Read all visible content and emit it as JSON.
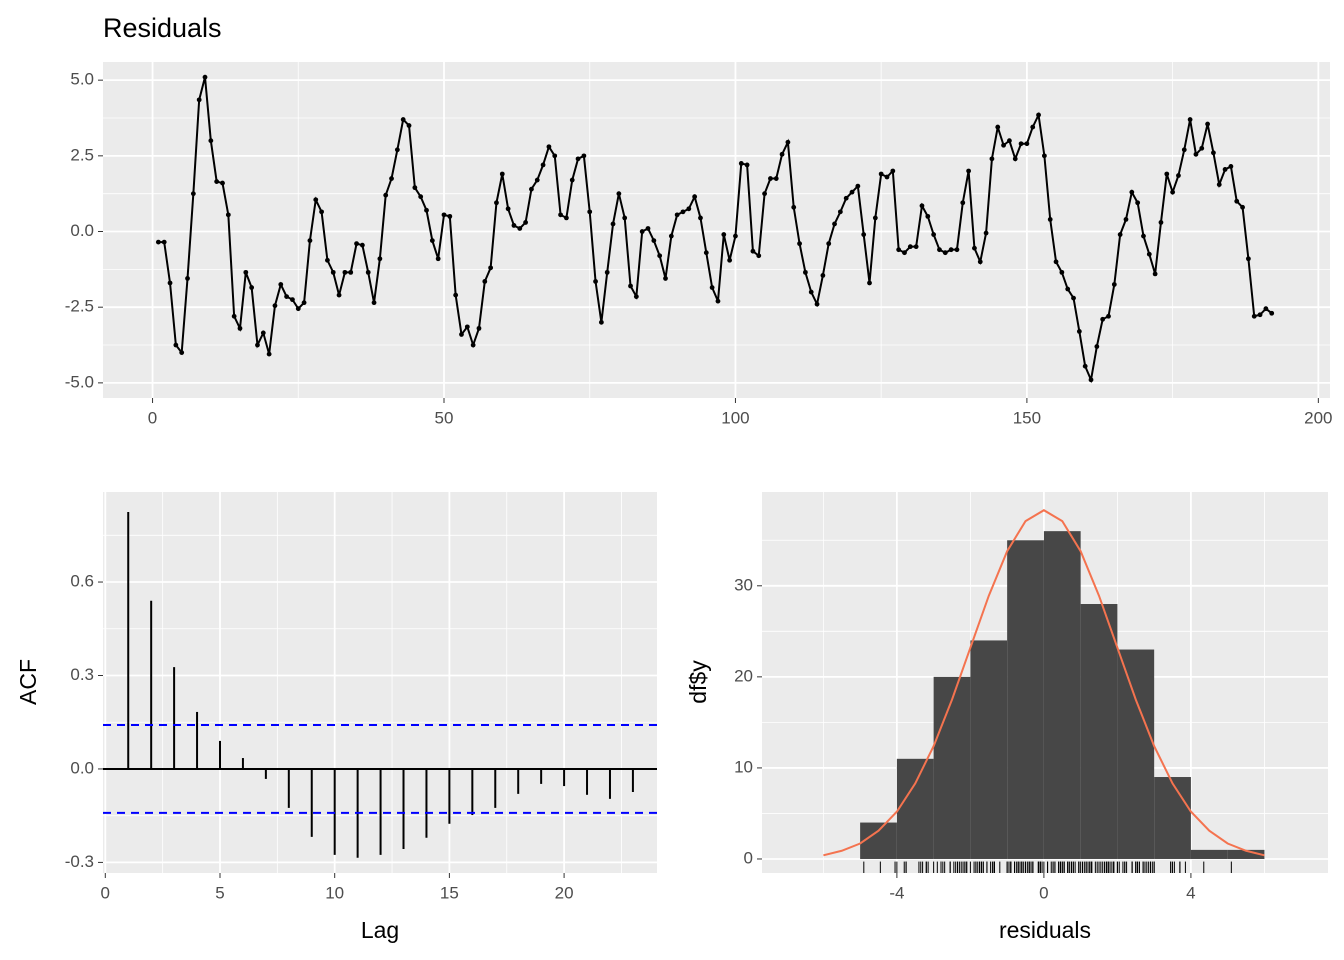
{
  "chart_data": [
    {
      "type": "line",
      "title": "Residuals",
      "color": "#000000",
      "grid": true,
      "x": [
        1,
        2,
        3,
        4,
        5,
        6,
        7,
        8,
        9,
        10,
        11,
        12,
        13,
        14,
        15,
        16,
        17,
        18,
        19,
        20,
        21,
        22,
        23,
        24,
        25,
        26,
        27,
        28,
        29,
        30,
        31,
        32,
        33,
        34,
        35,
        36,
        37,
        38,
        39,
        40,
        41,
        42,
        43,
        44,
        45,
        46,
        47,
        48,
        49,
        50,
        51,
        52,
        53,
        54,
        55,
        56,
        57,
        58,
        59,
        60,
        61,
        62,
        63,
        64,
        65,
        66,
        67,
        68,
        69,
        70,
        71,
        72,
        73,
        74,
        75,
        76,
        77,
        78,
        79,
        80,
        81,
        82,
        83,
        84,
        85,
        86,
        87,
        88,
        89,
        90,
        91,
        92,
        93,
        94,
        95,
        96,
        97,
        98,
        99,
        100,
        101,
        102,
        103,
        104,
        105,
        106,
        107,
        108,
        109,
        110,
        111,
        112,
        113,
        114,
        115,
        116,
        117,
        118,
        119,
        120,
        121,
        122,
        123,
        124,
        125,
        126,
        127,
        128,
        129,
        130,
        131,
        132,
        133,
        134,
        135,
        136,
        137,
        138,
        139,
        140,
        141,
        142,
        143,
        144,
        145,
        146,
        147,
        148,
        149,
        150,
        151,
        152,
        153,
        154,
        155,
        156,
        157,
        158,
        159,
        160,
        161,
        162,
        163,
        164,
        165,
        166,
        167,
        168,
        169,
        170,
        171,
        172,
        173,
        174,
        175,
        176,
        177,
        178,
        179,
        180,
        181,
        182,
        183,
        184,
        185,
        186,
        187,
        188,
        189,
        190,
        191,
        192
      ],
      "values": [
        -0.35,
        -0.35,
        -1.7,
        -3.75,
        -4.0,
        -1.55,
        1.25,
        4.35,
        5.1,
        3.0,
        1.65,
        1.6,
        0.55,
        -2.8,
        -3.2,
        -1.35,
        -1.85,
        -3.75,
        -3.35,
        -4.05,
        -2.45,
        -1.75,
        -2.15,
        -2.25,
        -2.55,
        -2.35,
        -0.3,
        1.05,
        0.65,
        -0.95,
        -1.35,
        -2.1,
        -1.35,
        -1.35,
        -0.4,
        -0.45,
        -1.35,
        -2.35,
        -0.9,
        1.2,
        1.75,
        2.7,
        3.7,
        3.5,
        1.45,
        1.15,
        0.7,
        -0.3,
        -0.9,
        0.55,
        0.5,
        -2.1,
        -3.4,
        -3.15,
        -3.75,
        -3.2,
        -1.65,
        -1.2,
        0.95,
        1.9,
        0.75,
        0.2,
        0.1,
        0.3,
        1.4,
        1.7,
        2.2,
        2.8,
        2.5,
        0.55,
        0.45,
        1.7,
        2.4,
        2.5,
        0.65,
        -1.65,
        -3.0,
        -1.35,
        0.25,
        1.25,
        0.45,
        -1.8,
        -2.15,
        0.0,
        0.1,
        -0.3,
        -0.8,
        -1.55,
        -0.15,
        0.55,
        0.65,
        0.75,
        1.15,
        0.45,
        -0.7,
        -1.85,
        -2.3,
        -0.1,
        -0.95,
        -0.15,
        2.25,
        2.2,
        -0.65,
        -0.8,
        1.25,
        1.75,
        1.75,
        2.55,
        2.95,
        0.8,
        -0.4,
        -1.35,
        -2.0,
        -2.4,
        -1.45,
        -0.4,
        0.25,
        0.65,
        1.1,
        1.3,
        1.5,
        -0.1,
        -1.7,
        0.45,
        1.9,
        1.8,
        2.0,
        -0.6,
        -0.7,
        -0.5,
        -0.5,
        0.85,
        0.5,
        -0.1,
        -0.6,
        -0.7,
        -0.6,
        -0.6,
        0.95,
        2.0,
        -0.55,
        -1.0,
        -0.05,
        2.4,
        3.45,
        2.85,
        3.0,
        2.4,
        2.9,
        2.9,
        3.45,
        3.85,
        2.5,
        0.4,
        -1.0,
        -1.35,
        -1.9,
        -2.2,
        -3.3,
        -4.45,
        -4.9,
        -3.8,
        -2.9,
        -2.8,
        -1.75,
        -0.1,
        0.4,
        1.3,
        0.95,
        -0.15,
        -0.75,
        -1.4,
        0.3,
        1.9,
        1.3,
        1.85,
        2.7,
        3.7,
        2.55,
        2.75,
        3.55,
        2.6,
        1.55,
        2.05,
        2.15,
        1.0,
        0.8,
        -0.9,
        -2.8,
        -2.75,
        -2.55,
        -2.7
      ],
      "xlim": [
        -8.5,
        202
      ],
      "ylim": [
        -5.5,
        5.6
      ],
      "xticks": [
        0,
        50,
        100,
        150,
        200
      ],
      "yticks": [
        {
          "value": -5,
          "label": "-5.0"
        },
        {
          "value": -2.5,
          "label": "-2.5"
        },
        {
          "value": 0,
          "label": "0.0"
        },
        {
          "value": 2.5,
          "label": "2.5"
        },
        {
          "value": 5,
          "label": "5.0"
        }
      ]
    },
    {
      "type": "acf",
      "xlabel": "Lag",
      "ylabel": "ACF",
      "color": "#000000",
      "grid": true,
      "x": [
        1,
        2,
        3,
        4,
        5,
        6,
        7,
        8,
        9,
        10,
        11,
        12,
        13,
        14,
        15,
        16,
        17,
        18,
        19,
        20,
        21,
        22,
        23
      ],
      "values": [
        0.825,
        0.54,
        0.327,
        0.183,
        0.09,
        0.035,
        -0.032,
        -0.125,
        -0.218,
        -0.276,
        -0.285,
        -0.276,
        -0.257,
        -0.221,
        -0.176,
        -0.148,
        -0.125,
        -0.08,
        -0.048,
        -0.055,
        -0.083,
        -0.096,
        -0.074
      ],
      "conf_limits": [
        0.141,
        -0.141
      ],
      "conf_color": "#0000ff",
      "xlim": [
        -0.1,
        24.05
      ],
      "ylim": [
        -0.334,
        0.889
      ],
      "xticks": [
        0,
        5,
        10,
        15,
        20
      ],
      "yticks": [
        {
          "value": -0.3,
          "label": "-0.3"
        },
        {
          "value": 0,
          "label": "0.0"
        },
        {
          "value": 0.3,
          "label": "0.3"
        },
        {
          "value": 0.6,
          "label": "0.6"
        }
      ]
    },
    {
      "type": "histogram",
      "xlabel": "residuals",
      "ylabel": "df$y",
      "color": "#474747",
      "grid": true,
      "bins": [
        -5,
        -4,
        -3,
        -2,
        -1,
        0,
        1,
        2,
        3,
        4,
        5,
        6
      ],
      "counts": [
        4,
        11,
        20,
        24,
        35,
        36,
        28,
        23,
        9,
        1,
        1
      ],
      "curve": {
        "color": "#f4734f",
        "x": [
          -6,
          -5.5,
          -5,
          -4.5,
          -4,
          -3.5,
          -3,
          -2.5,
          -2,
          -1.5,
          -1,
          -0.5,
          0,
          0.5,
          1,
          1.5,
          2,
          2.5,
          3,
          3.5,
          4,
          4.5,
          5,
          5.5,
          6
        ],
        "values": [
          0.4,
          0.9,
          1.7,
          3.1,
          5.2,
          8.3,
          12.4,
          17.5,
          23.2,
          28.9,
          33.8,
          37.1,
          38.3,
          37.1,
          33.8,
          28.9,
          23.2,
          17.5,
          12.4,
          8.3,
          5.2,
          3.1,
          1.7,
          0.9,
          0.4
        ]
      },
      "xlim": [
        -7.67,
        7.73
      ],
      "ylim": [
        -1.54,
        40.3
      ],
      "xticks": [
        -4,
        0,
        4
      ],
      "yticks": [
        0,
        10,
        20,
        30
      ]
    }
  ]
}
